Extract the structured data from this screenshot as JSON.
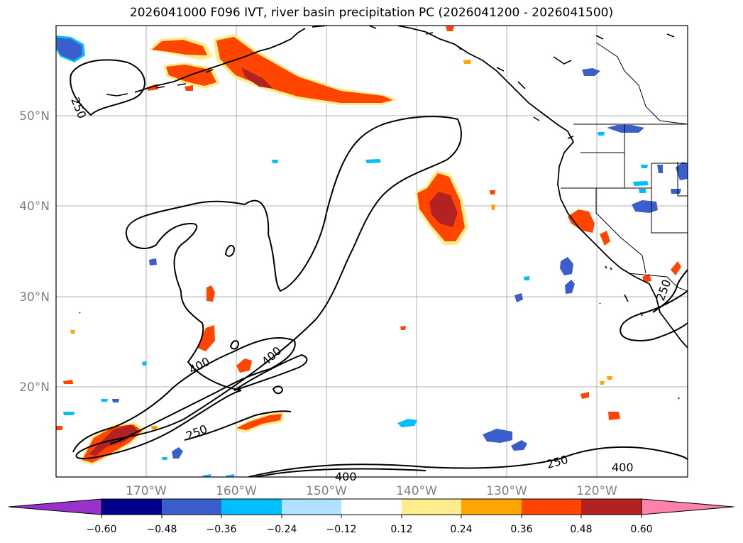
{
  "title": "2026041000 F096 IVT, river basin precipitation PC (2026041200 - 2026041500)",
  "lon_ticks": [
    "170°W",
    "160°W",
    "150°W",
    "140°W",
    "130°W",
    "120°W"
  ],
  "lat_ticks": [
    "50°N",
    "40°N",
    "30°N",
    "20°N"
  ],
  "contour_labels": [
    "250",
    "400",
    "400",
    "250",
    "250",
    "400",
    "400",
    "250"
  ],
  "colorbar": {
    "ticks": [
      "−0.60",
      "−0.48",
      "−0.36",
      "−0.24",
      "−0.12",
      "0.12",
      "0.24",
      "0.36",
      "0.48",
      "0.60"
    ],
    "colors": [
      "#9932cc",
      "#00008b",
      "#3a5fcd",
      "#00bfff",
      "#b0e2ff",
      "#ffffff",
      "#ffec8b",
      "#ffa500",
      "#ff4500",
      "#b22222",
      "#ff82ab"
    ]
  },
  "colors": {
    "neg_strong": "#3a5fcd",
    "neg_mid": "#00bfff",
    "neg_light": "#b0e2ff",
    "pos_light": "#ffec8b",
    "pos_mid": "#ffa500",
    "pos_strong": "#ff4500",
    "pos_max": "#b22222",
    "grid": "#b0b0b0"
  }
}
